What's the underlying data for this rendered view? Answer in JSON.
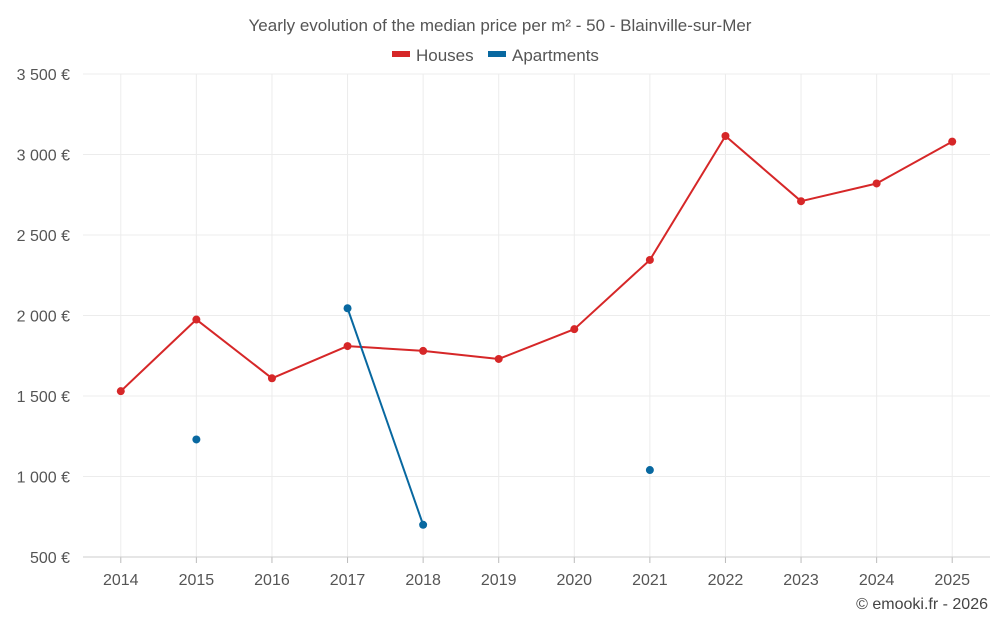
{
  "chart_data": {
    "type": "line",
    "title": "Yearly evolution of the median price per m² - 50 - Blainville-sur-Mer",
    "categories": [
      "2014",
      "2015",
      "2016",
      "2017",
      "2018",
      "2019",
      "2020",
      "2021",
      "2022",
      "2023",
      "2024",
      "2025"
    ],
    "series": [
      {
        "name": "Houses",
        "color": "#d62728",
        "values": [
          1530,
          1975,
          1610,
          1810,
          1780,
          1730,
          1915,
          2345,
          3115,
          2710,
          2820,
          3080
        ]
      },
      {
        "name": "Apartments",
        "color": "#0868a0",
        "values": [
          null,
          1230,
          null,
          2045,
          700,
          null,
          null,
          1040,
          null,
          null,
          null,
          null
        ]
      }
    ],
    "ylim": [
      500,
      3500
    ],
    "yticks": [
      500,
      1000,
      1500,
      2000,
      2500,
      3000,
      3500
    ],
    "ytick_labels": [
      "500 €",
      "1 000 €",
      "1 500 €",
      "2 000 €",
      "2 500 €",
      "3 000 €",
      "3 500 €"
    ],
    "xlabel": "",
    "ylabel": "",
    "grid": true,
    "legend_position": "top-center"
  },
  "credit": "© emooki.fr - 2026"
}
